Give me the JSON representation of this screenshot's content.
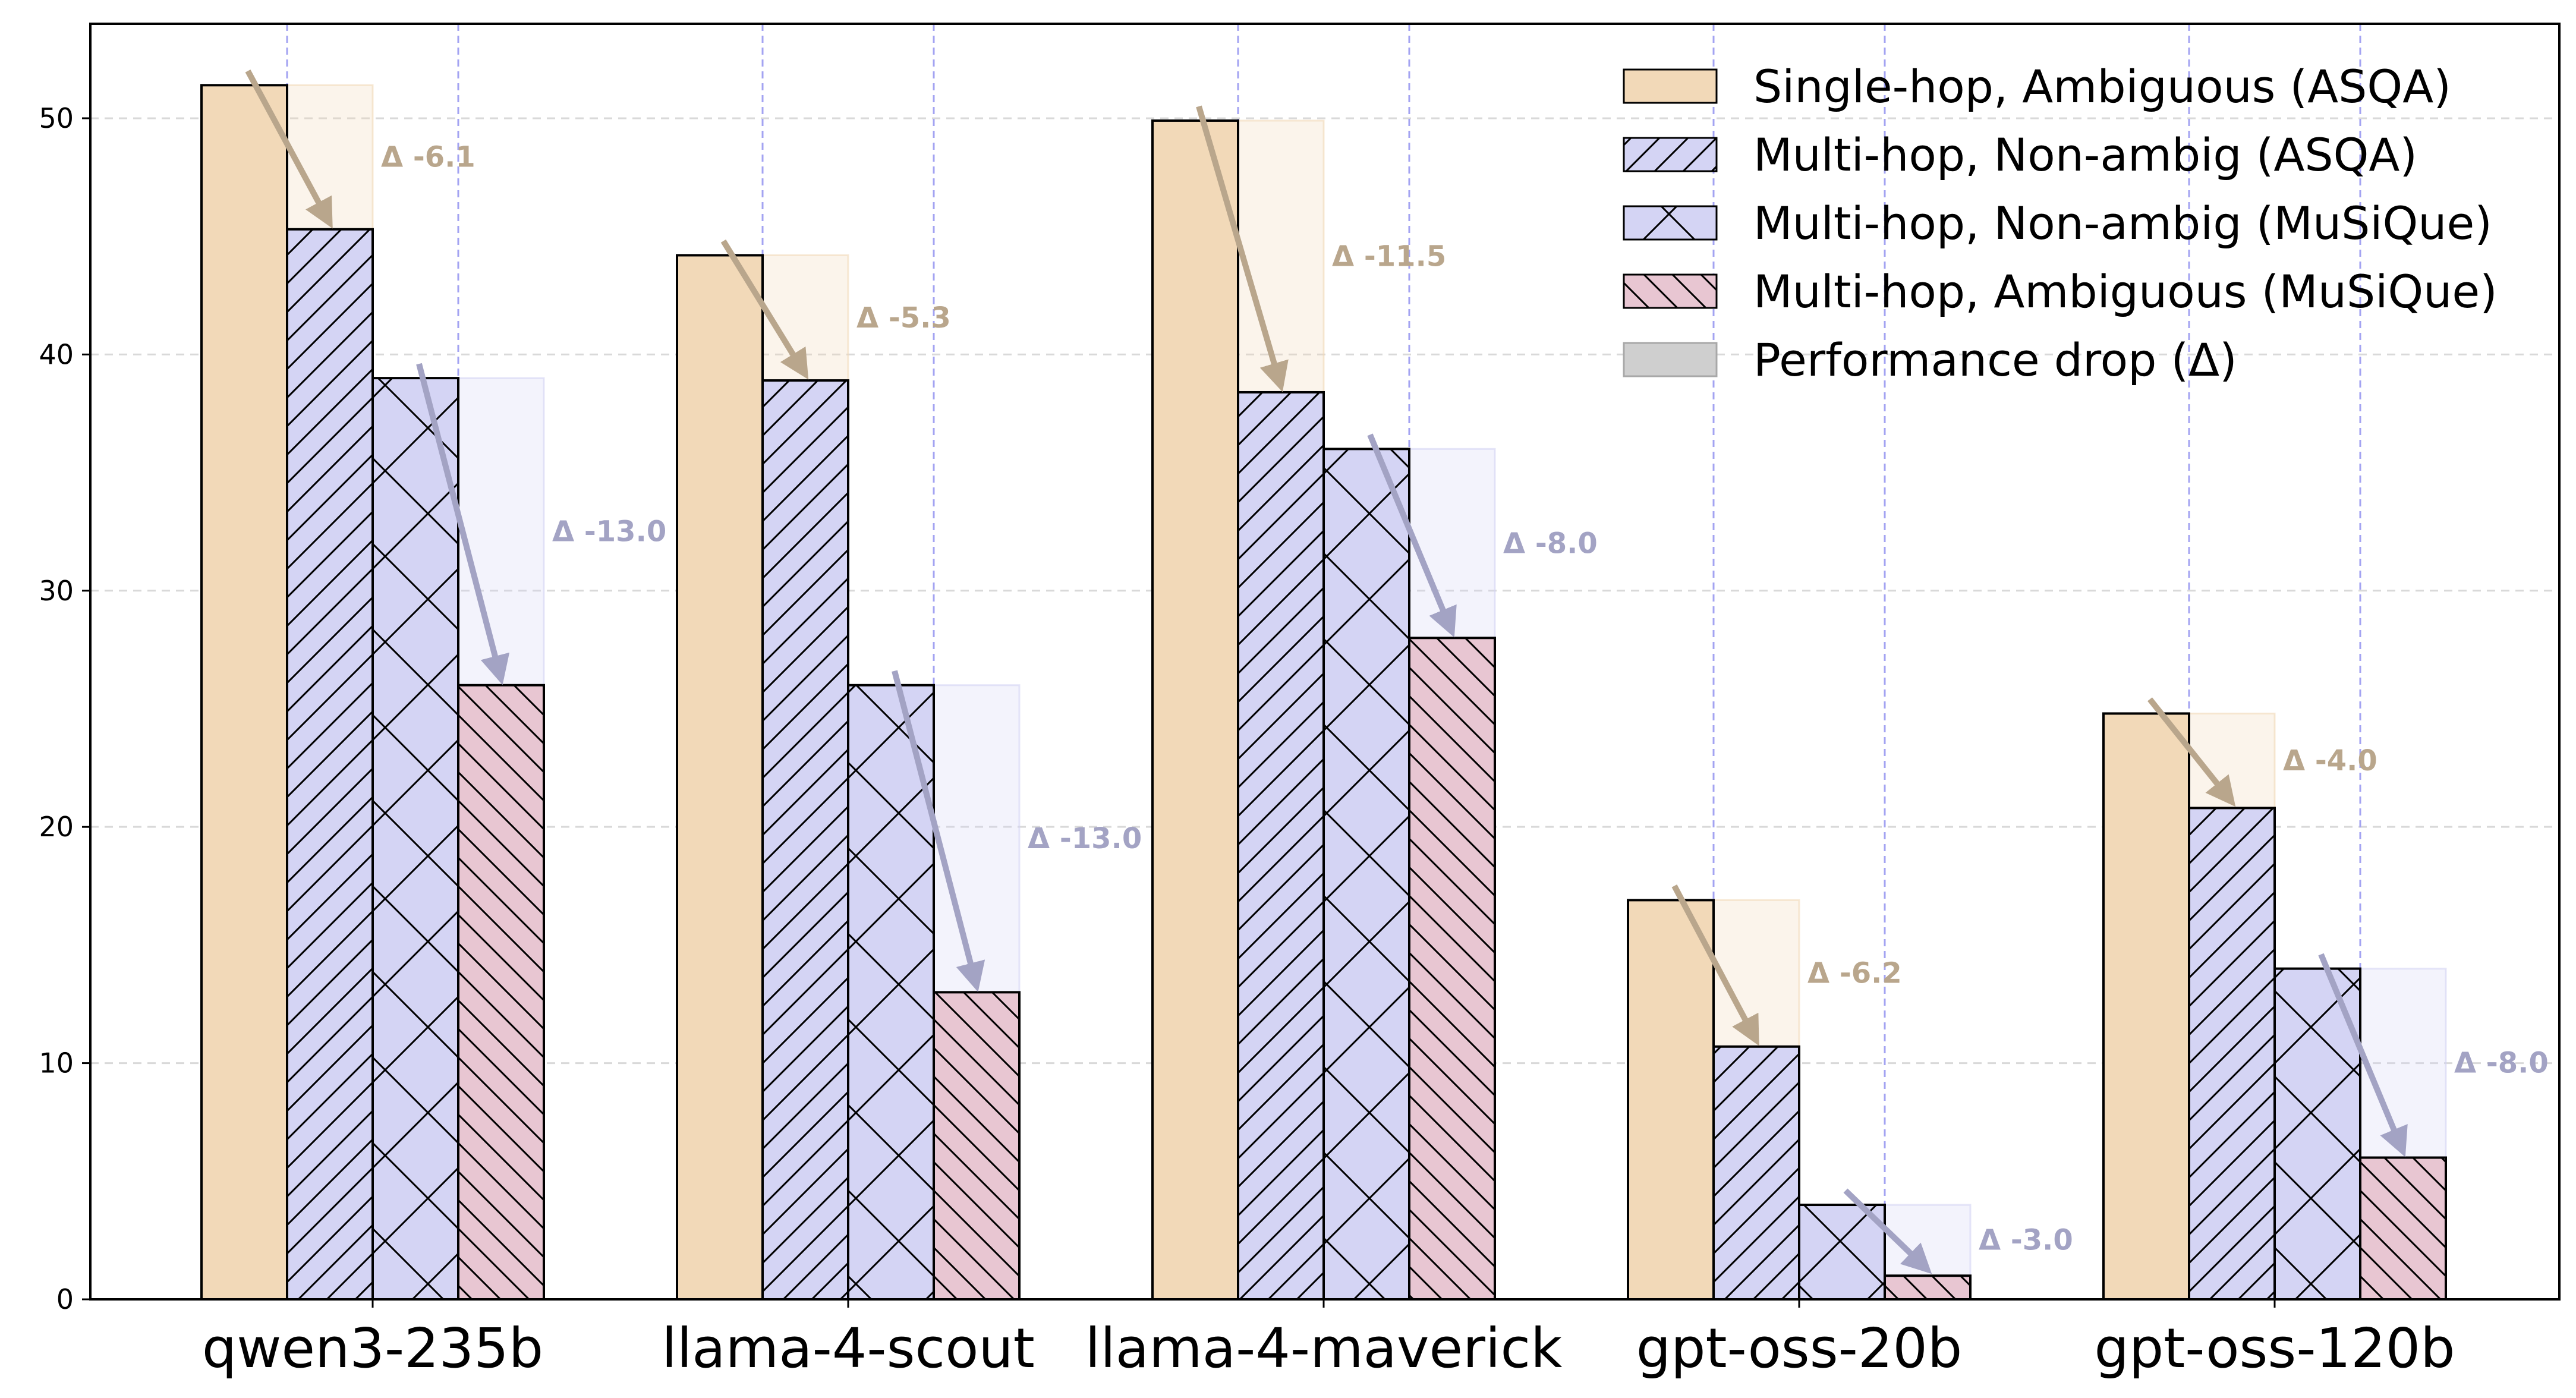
{
  "chart_data": {
    "type": "bar",
    "title": "",
    "xlabel": "",
    "ylabel": "",
    "ylim": [
      0,
      54
    ],
    "yticks": [
      0,
      10,
      20,
      30,
      40,
      50
    ],
    "grid": true,
    "legend_position": "top-right",
    "categories": [
      "qwen3-235b",
      "llama-4-scout",
      "llama-4-maverick",
      "gpt-oss-20b",
      "gpt-oss-120b"
    ],
    "series": [
      {
        "name": "Single-hop, Ambiguous (ASQA)",
        "values": [
          51.4,
          44.2,
          49.9,
          16.9,
          24.8
        ],
        "color": "#f2d9b8",
        "hatch": "none"
      },
      {
        "name": "Multi-hop, Non-ambig (ASQA)",
        "values": [
          45.3,
          38.9,
          38.4,
          10.7,
          20.8
        ],
        "color": "#d4d4f4",
        "hatch": "forward"
      },
      {
        "name": "Multi-hop, Non-ambig (MuSiQue)",
        "values": [
          39.0,
          26.0,
          36.0,
          4.0,
          14.0
        ],
        "color": "#d4d4f4",
        "hatch": "cross"
      },
      {
        "name": "Multi-hop, Ambiguous (MuSiQue)",
        "values": [
          26.0,
          13.0,
          28.0,
          1.0,
          6.0
        ],
        "color": "#e8c6d2",
        "hatch": "back"
      }
    ],
    "drops": [
      {
        "category": "qwen3-235b",
        "pair": "ASQA",
        "label": "Δ -6.1"
      },
      {
        "category": "qwen3-235b",
        "pair": "MuSiQue",
        "label": "Δ -13.0"
      },
      {
        "category": "llama-4-scout",
        "pair": "ASQA",
        "label": "Δ -5.3"
      },
      {
        "category": "llama-4-scout",
        "pair": "MuSiQue",
        "label": "Δ -13.0"
      },
      {
        "category": "llama-4-maverick",
        "pair": "ASQA",
        "label": "Δ -11.5"
      },
      {
        "category": "llama-4-maverick",
        "pair": "MuSiQue",
        "label": "Δ -8.0"
      },
      {
        "category": "gpt-oss-20b",
        "pair": "ASQA",
        "label": "Δ -6.2"
      },
      {
        "category": "gpt-oss-20b",
        "pair": "MuSiQue",
        "label": "Δ -3.0"
      },
      {
        "category": "gpt-oss-120b",
        "pair": "ASQA",
        "label": "Δ -4.0"
      },
      {
        "category": "gpt-oss-120b",
        "pair": "MuSiQue",
        "label": "Δ -8.0"
      }
    ],
    "legend": [
      {
        "label": "Single-hop, Ambiguous (ASQA)"
      },
      {
        "label": "Multi-hop, Non-ambig (ASQA)"
      },
      {
        "label": "Multi-hop, Non-ambig (MuSiQue)"
      },
      {
        "label": "Multi-hop, Ambiguous (MuSiQue)"
      },
      {
        "label": "Performance drop (Δ)"
      }
    ],
    "colors": {
      "asqa_drop": "#b9a68c",
      "musique_drop": "#a3a3c4",
      "separator": "#a3a3f2",
      "grid": "#d9d9d9"
    }
  }
}
